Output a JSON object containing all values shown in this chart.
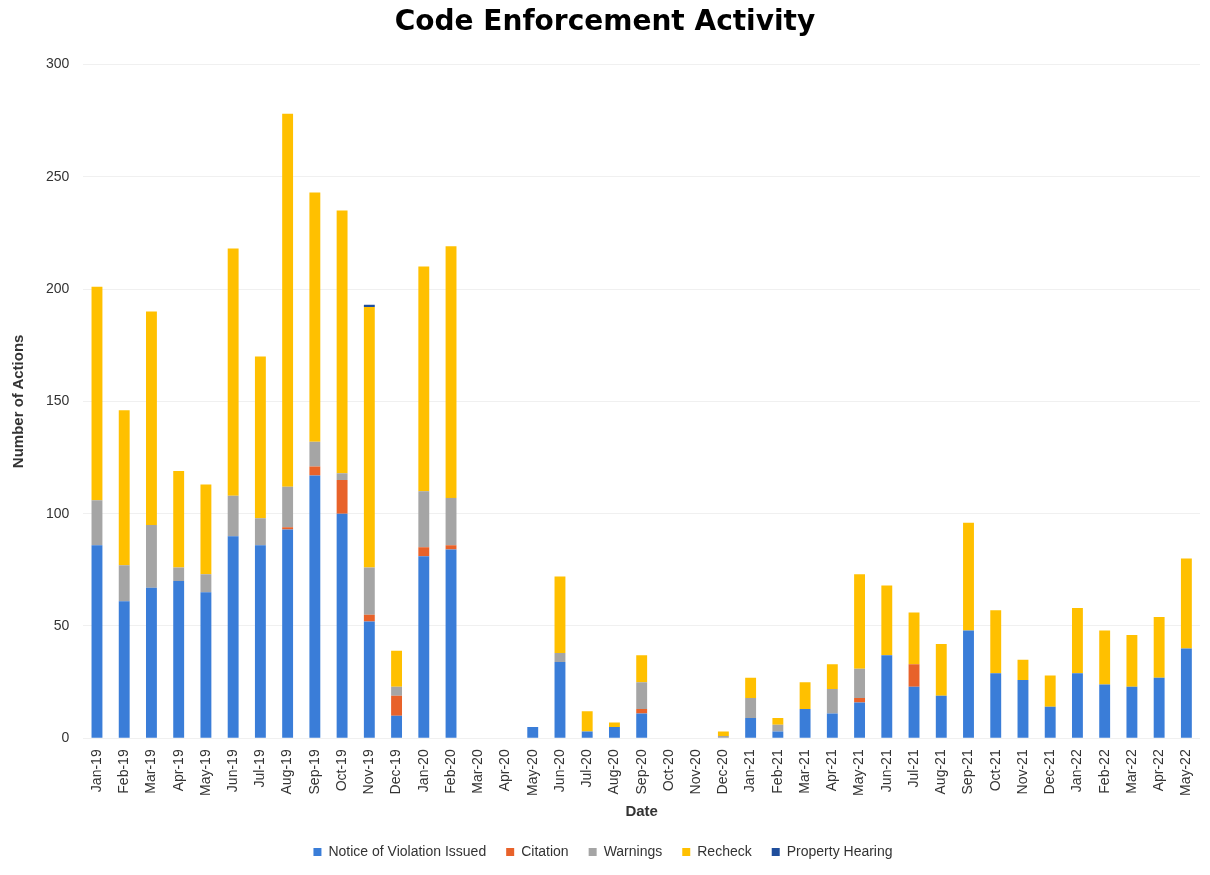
{
  "chart_data": {
    "type": "bar",
    "title": "Code Enforcement Activity",
    "xlabel": "Date",
    "ylabel": "Number of Actions",
    "stacked": true,
    "grid": "y",
    "legend": "bottom",
    "ylim": [
      0,
      300
    ],
    "yticks": [
      0,
      50,
      100,
      150,
      200,
      250,
      300
    ],
    "categories": [
      "Jan-19",
      "Feb-19",
      "Mar-19",
      "Apr-19",
      "May-19",
      "Jun-19",
      "Jul-19",
      "Aug-19",
      "Sep-19",
      "Oct-19",
      "Nov-19",
      "Dec-19",
      "Jan-20",
      "Feb-20",
      "Mar-20",
      "Apr-20",
      "May-20",
      "Jun-20",
      "Jul-20",
      "Aug-20",
      "Sep-20",
      "Oct-20",
      "Nov-20",
      "Dec-20",
      "Jan-21",
      "Feb-21",
      "Mar-21",
      "Apr-21",
      "May-21",
      "Jun-21",
      "Jul-21",
      "Aug-21",
      "Sep-21",
      "Oct-21",
      "Nov-21",
      "Dec-21",
      "Jan-22",
      "Feb-22",
      "Mar-22",
      "Apr-22",
      "May-22"
    ],
    "series": [
      {
        "name": "Notice of Violation Issued",
        "color": "#3a7dd8",
        "values": [
          86,
          61,
          67,
          70,
          65,
          90,
          86,
          93,
          117,
          100,
          52,
          10,
          81,
          84,
          0,
          0,
          5,
          34,
          3,
          5,
          11,
          0,
          0,
          0,
          9,
          3,
          13,
          11,
          16,
          37,
          23,
          19,
          48,
          29,
          26,
          14,
          29,
          24,
          23,
          27,
          40
        ]
      },
      {
        "name": "Citation",
        "color": "#e8622a",
        "values": [
          0,
          0,
          0,
          0,
          0,
          0,
          0,
          1,
          4,
          15,
          3,
          9,
          4,
          2,
          0,
          0,
          0,
          0,
          0,
          0,
          2,
          0,
          0,
          0,
          0,
          0,
          0,
          0,
          2,
          0,
          10,
          0,
          0,
          0,
          0,
          0,
          0,
          0,
          0,
          0,
          0
        ]
      },
      {
        "name": "Warnings",
        "color": "#a5a5a5",
        "values": [
          20,
          16,
          28,
          6,
          8,
          18,
          12,
          18,
          11,
          3,
          21,
          4,
          25,
          21,
          0,
          0,
          0,
          4,
          0,
          0,
          12,
          0,
          0,
          1,
          9,
          3,
          0,
          11,
          13,
          0,
          0,
          0,
          0,
          0,
          0,
          0,
          0,
          0,
          0,
          0,
          0
        ]
      },
      {
        "name": "Recheck",
        "color": "#ffc000",
        "values": [
          95,
          69,
          95,
          43,
          40,
          110,
          72,
          166,
          111,
          117,
          116,
          16,
          100,
          112,
          0,
          0,
          0,
          34,
          9,
          2,
          12,
          0,
          0,
          2,
          9,
          3,
          12,
          11,
          42,
          31,
          23,
          23,
          48,
          28,
          9,
          14,
          29,
          24,
          23,
          27,
          40
        ]
      },
      {
        "name": "Property Hearing",
        "color": "#1f4e9c",
        "values": [
          0,
          0,
          0,
          0,
          0,
          0,
          0,
          0,
          0,
          0,
          1,
          0,
          0,
          0,
          0,
          0,
          0,
          0,
          0,
          0,
          0,
          0,
          0,
          0,
          0,
          0,
          0,
          0,
          0,
          0,
          0,
          0,
          0,
          0,
          0,
          0,
          0,
          0,
          0,
          0,
          0
        ]
      }
    ]
  }
}
